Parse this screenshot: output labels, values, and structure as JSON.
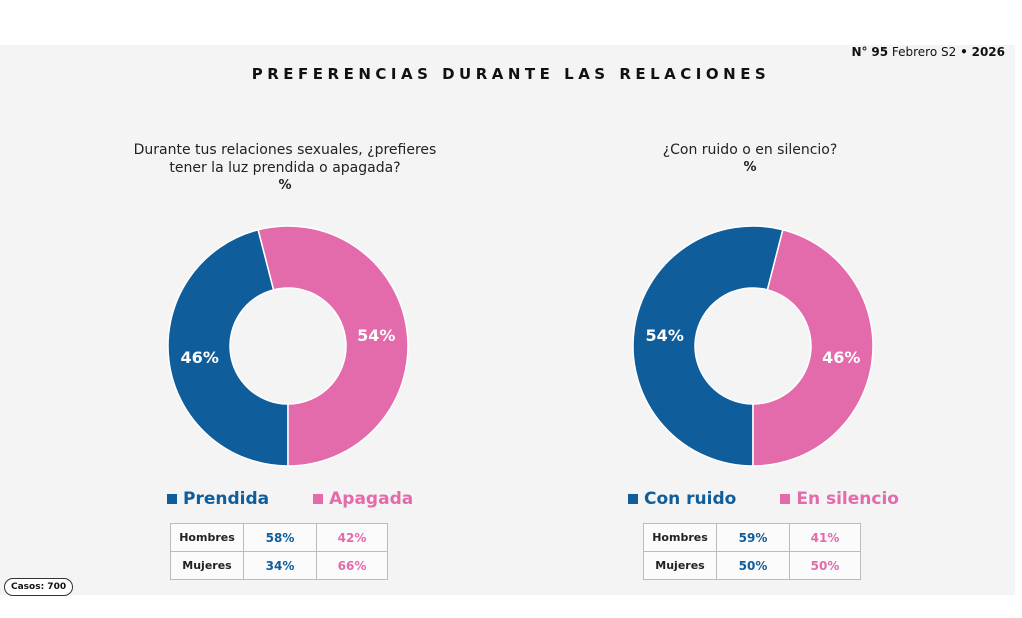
{
  "header": {
    "issue_prefix": "N°",
    "issue_number": "95",
    "issue_period": "Febrero S2",
    "issue_separator": "•",
    "issue_year": "2026",
    "title": "PREFERENCIAS DURANTE LAS RELACIONES"
  },
  "colors": {
    "blue": "#0f5d9a",
    "pink": "#e36aab"
  },
  "chart_data": [
    {
      "type": "pie",
      "variant": "donut",
      "title": "Durante tus relaciones sexuales, ¿prefieres tener la luz prendida o apagada?",
      "title_line1": "Durante tus relaciones sexuales, ¿prefieres",
      "title_line2": "tener la luz prendida o apagada?",
      "unit": "%",
      "categories": [
        "Prendida",
        "Apagada"
      ],
      "values": [
        46,
        54
      ],
      "labels": [
        "46%",
        "54%"
      ],
      "legend": [
        "Prendida",
        "Apagada"
      ],
      "legend_placement": "bottom",
      "breakdown": {
        "rows": [
          {
            "label": "Hombres",
            "values": [
              "58%",
              "42%"
            ]
          },
          {
            "label": "Mujeres",
            "values": [
              "34%",
              "66%"
            ]
          }
        ]
      }
    },
    {
      "type": "pie",
      "variant": "donut",
      "title": "¿Con ruido o en silencio?",
      "title_line1": "¿Con ruido o en silencio?",
      "unit": "%",
      "categories": [
        "Con ruido",
        "En silencio"
      ],
      "values": [
        54,
        46
      ],
      "labels": [
        "54%",
        "46%"
      ],
      "legend": [
        "Con ruido",
        "En silencio"
      ],
      "legend_placement": "bottom",
      "breakdown": {
        "rows": [
          {
            "label": "Hombres",
            "values": [
              "59%",
              "41%"
            ]
          },
          {
            "label": "Mujeres",
            "values": [
              "50%",
              "50%"
            ]
          }
        ]
      }
    }
  ],
  "footer": {
    "cases": "Casos: 700"
  }
}
